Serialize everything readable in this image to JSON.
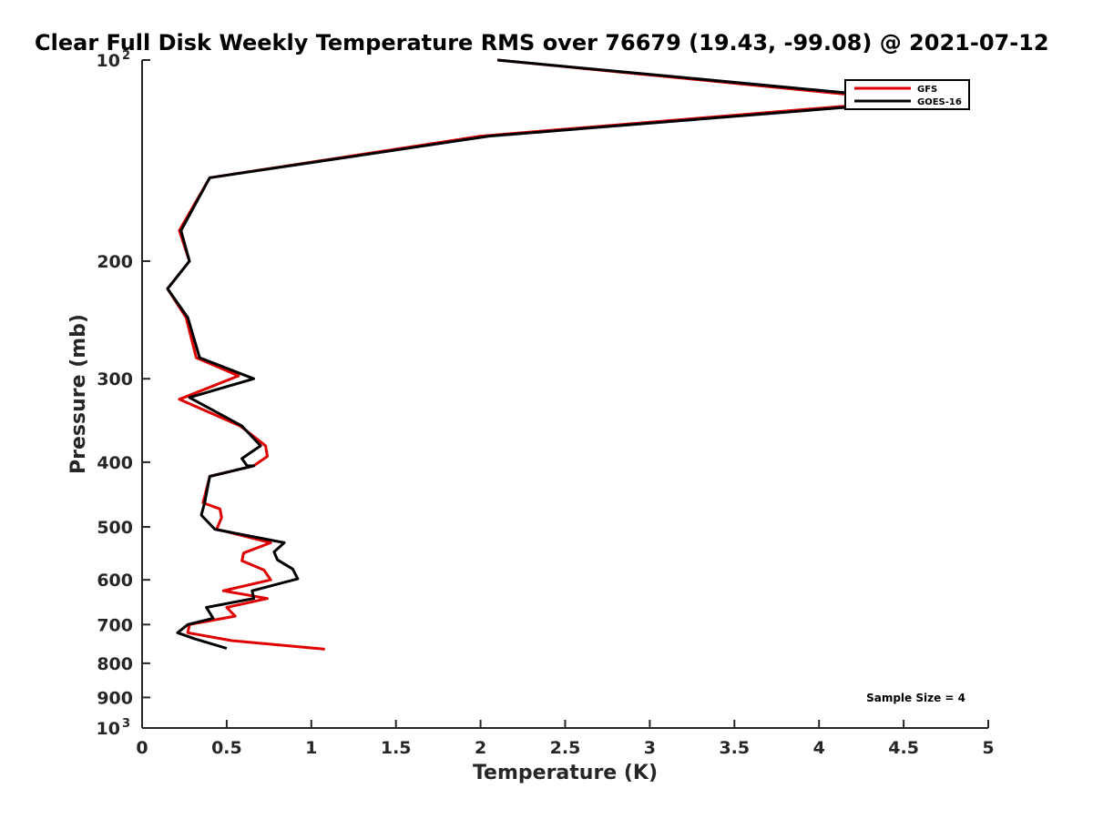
{
  "chart_data": {
    "type": "line",
    "title": "Clear Full Disk Weekly Temperature RMS over 76679 (19.43, -99.08) @ 2021-07-12",
    "xlabel": "Temperature (K)",
    "ylabel": "Pressure (mb)",
    "xlim": [
      0,
      5
    ],
    "ylim": [
      100,
      1000
    ],
    "yscale": "log",
    "y_reversed": true,
    "x_ticks": [
      "0",
      "0.5",
      "1",
      "1.5",
      "2",
      "2.5",
      "3",
      "3.5",
      "4",
      "4.5",
      "5"
    ],
    "y_ticks": [
      {
        "value": 100,
        "base": "10",
        "exp": "2"
      },
      {
        "value": 200,
        "label": "200"
      },
      {
        "value": 300,
        "label": "300"
      },
      {
        "value": 400,
        "label": "400"
      },
      {
        "value": 500,
        "label": "500"
      },
      {
        "value": 600,
        "label": "600"
      },
      {
        "value": 700,
        "label": "700"
      },
      {
        "value": 800,
        "label": "800"
      },
      {
        "value": 900,
        "label": "900"
      },
      {
        "value": 1000,
        "base": "10",
        "exp": "3"
      }
    ],
    "legend_position": "top-right",
    "annotation": "Sample Size = 4",
    "series": [
      {
        "name": "GFS",
        "color": "#e00000",
        "points": [
          [
            2.1,
            100
          ],
          [
            4.55,
            115
          ],
          [
            2.0,
            130
          ],
          [
            0.4,
            150
          ],
          [
            0.22,
            180
          ],
          [
            0.28,
            200
          ],
          [
            0.15,
            220
          ],
          [
            0.26,
            243
          ],
          [
            0.32,
            279
          ],
          [
            0.57,
            297
          ],
          [
            0.22,
            322
          ],
          [
            0.58,
            353
          ],
          [
            0.73,
            378
          ],
          [
            0.74,
            392
          ],
          [
            0.66,
            405
          ],
          [
            0.4,
            420
          ],
          [
            0.36,
            460
          ],
          [
            0.46,
            470
          ],
          [
            0.47,
            484
          ],
          [
            0.44,
            504
          ],
          [
            0.76,
            528
          ],
          [
            0.6,
            547
          ],
          [
            0.59,
            562
          ],
          [
            0.72,
            580
          ],
          [
            0.76,
            600
          ],
          [
            0.48,
            623
          ],
          [
            0.74,
            640
          ],
          [
            0.5,
            660
          ],
          [
            0.55,
            680
          ],
          [
            0.28,
            700
          ],
          [
            0.27,
            720
          ],
          [
            0.53,
            740
          ],
          [
            1.08,
            762
          ]
        ]
      },
      {
        "name": "GOES-16",
        "color": "#000000",
        "points": [
          [
            2.1,
            100
          ],
          [
            4.65,
            115
          ],
          [
            2.05,
            130
          ],
          [
            0.4,
            150
          ],
          [
            0.23,
            180
          ],
          [
            0.28,
            200
          ],
          [
            0.15,
            220
          ],
          [
            0.27,
            243
          ],
          [
            0.34,
            279
          ],
          [
            0.66,
            300
          ],
          [
            0.28,
            320
          ],
          [
            0.59,
            353
          ],
          [
            0.7,
            378
          ],
          [
            0.59,
            395
          ],
          [
            0.62,
            405
          ],
          [
            0.66,
            405
          ],
          [
            0.4,
            420
          ],
          [
            0.37,
            460
          ],
          [
            0.35,
            480
          ],
          [
            0.43,
            504
          ],
          [
            0.84,
            528
          ],
          [
            0.78,
            545
          ],
          [
            0.8,
            560
          ],
          [
            0.89,
            578
          ],
          [
            0.92,
            598
          ],
          [
            0.65,
            623
          ],
          [
            0.66,
            640
          ],
          [
            0.38,
            660
          ],
          [
            0.42,
            685
          ],
          [
            0.27,
            700
          ],
          [
            0.21,
            720
          ],
          [
            0.31,
            735
          ],
          [
            0.5,
            760
          ]
        ]
      }
    ]
  }
}
